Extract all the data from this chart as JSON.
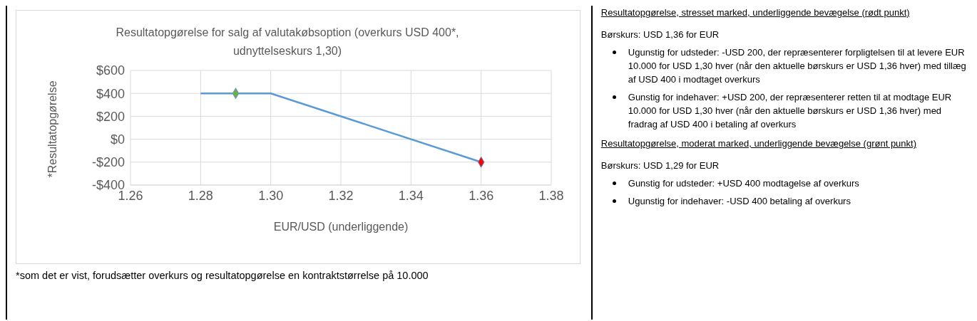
{
  "chart_data": {
    "type": "line",
    "title": "Resultatopgørelse for salg af valutakøbsoption (overkurs USD 400*, udnyttelseskurs 1,30)",
    "xlabel": "EUR/USD (underliggende)",
    "ylabel": "*Resultatopgørelse",
    "series": [
      {
        "color": "#5b9bd5",
        "x": [
          1.28,
          1.3,
          1.36
        ],
        "values": [
          400,
          400,
          -200
        ],
        "marker": "none"
      },
      {
        "type": "scatter",
        "color": "#70ad47",
        "x": [
          1.29
        ],
        "values": [
          400
        ],
        "marker": "diamond"
      },
      {
        "type": "scatter",
        "color": "#ff0000",
        "x": [
          1.36
        ],
        "values": [
          -200
        ],
        "marker": "diamond"
      }
    ],
    "xlim": [
      1.26,
      1.38
    ],
    "xticks": [
      {
        "value": 1.26,
        "label": "1.26"
      },
      {
        "value": 1.28,
        "label": "1.28"
      },
      {
        "value": 1.3,
        "label": "1.30"
      },
      {
        "value": 1.32,
        "label": "1.32"
      },
      {
        "value": 1.34,
        "label": "1.34"
      },
      {
        "value": 1.36,
        "label": "1.36"
      },
      {
        "value": 1.38,
        "label": "1.38"
      }
    ],
    "ylim": [
      -400,
      600
    ],
    "yticks": [
      {
        "value": -400,
        "label": "-$400"
      },
      {
        "value": -200,
        "label": "-$200"
      },
      {
        "value": 0,
        "label": "$0"
      },
      {
        "value": 200,
        "label": "$200"
      },
      {
        "value": 400,
        "label": "$400"
      },
      {
        "value": 600,
        "label": "$600"
      }
    ],
    "grid": true,
    "annotations": [
      "*som det er vist, forudsætter overkurs og resultatopgørelse en kontraktstørrelse på 10.000",
      "Resultatopgørelse, stresset marked, underliggende bevægelse (rødt punkt)",
      "Børskurs: USD 1,36 for EUR",
      "Ugunstig for udsteder: -USD 200, der repræsenterer forpligtelsen til at levere EUR 10.000 for USD 1,30 hver (når den aktuelle børskurs er USD 1,36 hver) med tillæg af USD 400 i modtaget overkurs",
      "Gunstig for indehaver: +USD 200, der repræsenterer retten til at modtage EUR 10.000 for USD 1,30 hver (når den aktuelle børskurs er USD 1,36 hver) med fradrag af USD 400 i betaling af overkurs",
      "Resultatopgørelse, moderat marked, underliggende bevægelse (grønt punkt)",
      "Børskurs: USD 1,29 for EUR",
      "Gunstig for udsteder: +USD 400 modtagelse af overkurs",
      "Ugunstig for indehaver: -USD 400 betaling af overkurs"
    ]
  }
}
